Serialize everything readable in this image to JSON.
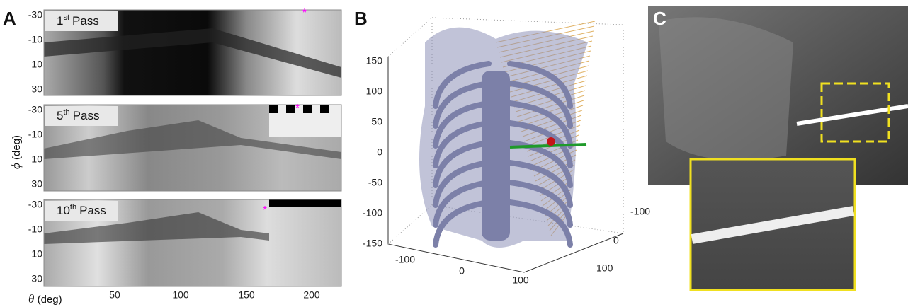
{
  "panels": {
    "a": {
      "label": "A",
      "y_axis": {
        "symbol": "ϕ",
        "unit": "(deg)",
        "ticks": [
          "-30",
          "-10",
          "10",
          "30"
        ]
      },
      "x_axis": {
        "symbol": "θ",
        "unit": "(deg)",
        "ticks": [
          "50",
          "100",
          "150",
          "200"
        ]
      },
      "subplots": [
        {
          "number": "1",
          "suffix": "st",
          "text": "Pass"
        },
        {
          "number": "5",
          "suffix": "th",
          "text": "Pass"
        },
        {
          "number": "10",
          "suffix": "th",
          "text": "Pass"
        }
      ]
    },
    "b": {
      "label": "B",
      "z_ticks": [
        "150",
        "100",
        "50",
        "0",
        "-50",
        "-100",
        "-150"
      ],
      "x_ticks": [
        "-100",
        "0",
        "100"
      ],
      "y_ticks": [
        "-100",
        "0",
        "100"
      ]
    },
    "c": {
      "label": "C"
    }
  }
}
